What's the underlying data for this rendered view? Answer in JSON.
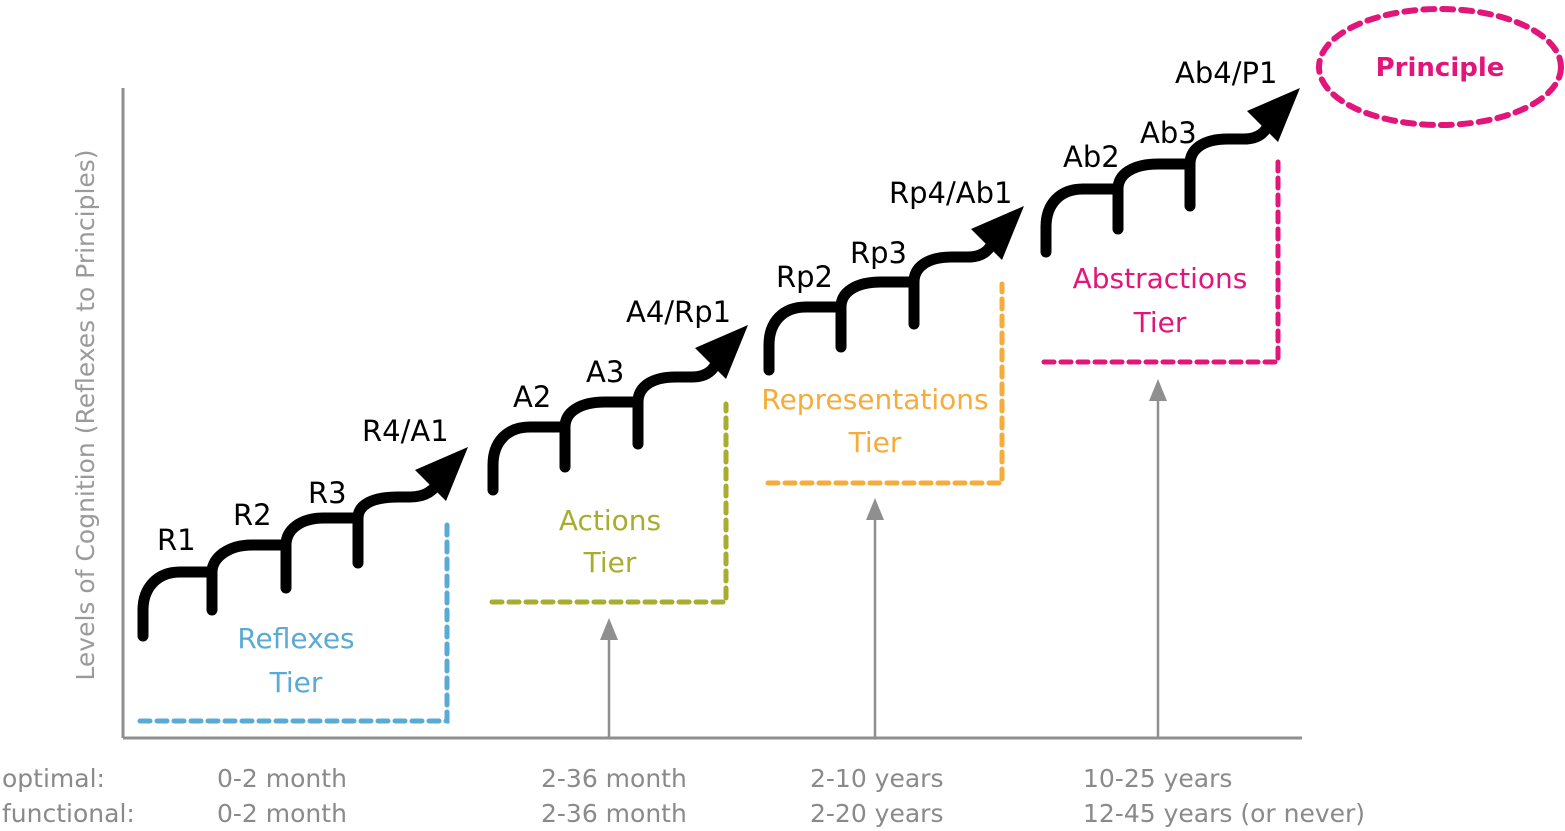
{
  "y_axis_label": "Levels of Cognition (Reflexes to Principles)",
  "row_labels": {
    "optimal": "optimal:",
    "functional": "functional:"
  },
  "principle": {
    "label": "Principle",
    "color": "#e2157a"
  },
  "tiers": [
    {
      "name_line1": "Reflexes",
      "name_line2": "Tier",
      "color": "#5aaad6",
      "levels": [
        "R1",
        "R2",
        "R3",
        "R4/A1"
      ],
      "optimal": "0-2 month",
      "functional": "0-2 month"
    },
    {
      "name_line1": "Actions",
      "name_line2": "Tier",
      "color": "#a9ad2f",
      "levels": [
        "A2",
        "A3",
        "A4/Rp1"
      ],
      "optimal": "2-36 month",
      "functional": "2-36 month"
    },
    {
      "name_line1": "Representations",
      "name_line2": "Tier",
      "color": "#f5ac3a",
      "levels": [
        "Rp2",
        "Rp3",
        "Rp4/Ab1"
      ],
      "optimal": "2-10 years",
      "functional": "2-20 years"
    },
    {
      "name_line1": "Abstractions",
      "name_line2": "Tier",
      "color": "#e2157a",
      "levels": [
        "Ab2",
        "Ab3",
        "Ab4/P1"
      ],
      "optimal": "10-25 years",
      "functional": "12-45 years (or never)"
    }
  ]
}
